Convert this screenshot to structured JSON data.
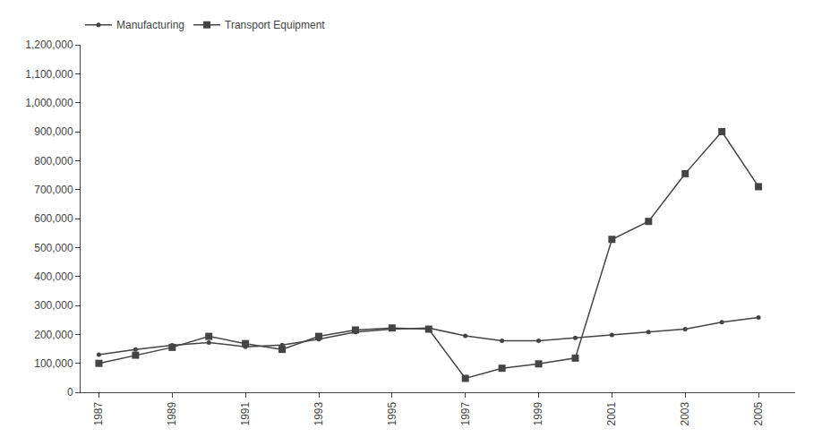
{
  "chart_data": {
    "type": "line",
    "x": [
      1987,
      1988,
      1989,
      1990,
      1991,
      1992,
      1993,
      1994,
      1995,
      1996,
      1997,
      1998,
      1999,
      2000,
      2001,
      2002,
      2003,
      2004,
      2005
    ],
    "series": [
      {
        "name": "Manufacturing",
        "color": "#444444",
        "marker": "circle",
        "line_style": "solid",
        "values": [
          130000,
          148000,
          162000,
          172000,
          157000,
          163000,
          183000,
          208000,
          218000,
          222000,
          195000,
          178000,
          178000,
          188000,
          198000,
          208000,
          218000,
          242000,
          258000
        ]
      },
      {
        "name": "Transport Equipment",
        "color": "#444444",
        "marker": "square",
        "line_style": "solid",
        "values": [
          100000,
          128000,
          155000,
          193000,
          168000,
          148000,
          193000,
          215000,
          222000,
          218000,
          48000,
          83000,
          98000,
          118000,
          528000,
          590000,
          755000,
          900000,
          710000
        ]
      }
    ],
    "xlim": [
      1986.5,
      2006
    ],
    "xticks": [
      1987,
      1989,
      1991,
      1993,
      1995,
      1997,
      1999,
      2001,
      2003,
      2005
    ],
    "ylim": [
      0,
      1200000
    ],
    "yticks": [
      0,
      {
        "value": 100000,
        "label": "100,000"
      },
      {
        "value": 200000,
        "label": "200,000"
      },
      {
        "value": 300000,
        "label": "300,000"
      },
      {
        "value": 400000,
        "label": "400,000"
      },
      {
        "value": 500000,
        "label": "500,000"
      },
      {
        "value": 600000,
        "label": "600,000"
      },
      {
        "value": 700000,
        "label": "700,000"
      },
      {
        "value": 800000,
        "label": "800,000"
      },
      {
        "value": 900000,
        "label": "900,000"
      },
      {
        "value": 1000000,
        "label": "1,000,000"
      },
      {
        "value": 1100000,
        "label": "1,100,000"
      },
      {
        "value": 1200000,
        "label": "1,200,000"
      }
    ],
    "grid": false,
    "legend": "top"
  }
}
